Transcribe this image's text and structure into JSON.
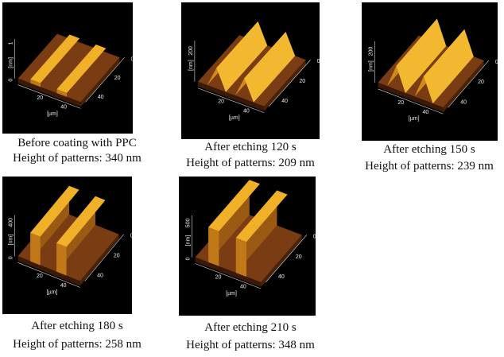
{
  "panels": [
    {
      "z_label": "[nm]",
      "z_ticks": [
        "1",
        "0"
      ],
      "x_ticks": [
        "20",
        "40"
      ],
      "y_ticks": [
        "0",
        "20",
        "40"
      ],
      "x_label": "[µm]",
      "caption": [
        "Before coating with  PPC",
        "Height of patterns: 340 nm"
      ]
    },
    {
      "z_label": "[nm]",
      "z_ticks": [
        "200"
      ],
      "x_ticks": [
        "20",
        "40"
      ],
      "y_ticks": [
        "0",
        "20",
        "40"
      ],
      "x_label": "[µm]",
      "caption": [
        "After etching 120 s",
        "Height of patterns: 209 nm"
      ]
    },
    {
      "z_label": "[nm]",
      "z_ticks": [
        "200"
      ],
      "x_ticks": [
        "20",
        "40"
      ],
      "y_ticks": [
        "0",
        "20",
        "40"
      ],
      "x_label": "[µm]",
      "caption": [
        "After etching 150 s",
        "Height of patterns: 239 nm"
      ]
    },
    {
      "z_label": "[nm]",
      "z_ticks": [
        "400",
        "0"
      ],
      "x_ticks": [
        "20",
        "40"
      ],
      "y_ticks": [
        "0",
        "20",
        "40"
      ],
      "x_label": "[µm]",
      "caption": [
        "After etching 180 s",
        "Height of patterns: 258 nm"
      ]
    },
    {
      "z_label": "[nm]",
      "z_ticks": [
        "500",
        "0"
      ],
      "x_ticks": [
        "20",
        "40"
      ],
      "y_ticks": [
        "0",
        "20",
        "40"
      ],
      "x_label": "[µm]",
      "caption": [
        "After etching 210 s",
        "Height of patterns: 348 nm"
      ]
    }
  ]
}
